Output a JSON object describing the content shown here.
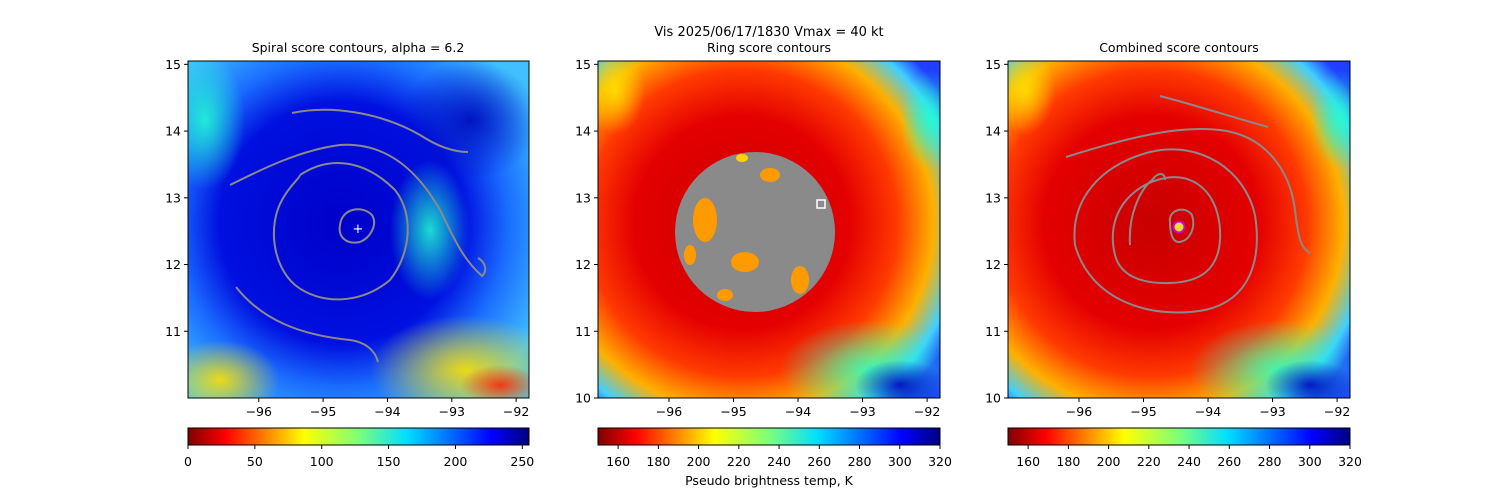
{
  "figure": {
    "suptitle_line1": "Vis  2025/06/17/1830    Vmax = 40 kt",
    "colorbar_label": "Pseudo brightness temp, K"
  },
  "chart_data": [
    {
      "type": "heatmap",
      "title": "Spiral score contours, alpha =  6.2",
      "xlabel": "",
      "ylabel": "",
      "xlim": [
        -97.1,
        -91.8
      ],
      "ylim": [
        10.0,
        15.05
      ],
      "xticks": [
        -96,
        -95,
        -94,
        -93,
        -92
      ],
      "yticks": [
        11,
        12,
        13,
        14,
        15
      ],
      "center_marker": {
        "lon": -94.3,
        "lat": 12.5,
        "symbol": "+",
        "color": "#ffffff"
      },
      "colorbar": {
        "colormap": "jet_r",
        "range": [
          0,
          255
        ],
        "ticks": [
          0,
          50,
          100,
          150,
          200,
          250
        ],
        "label": ""
      },
      "contour_color": "#8a8a8a"
    },
    {
      "type": "heatmap",
      "title": "Ring score contours",
      "xlabel": "",
      "ylabel": "",
      "xlim": [
        -97.1,
        -91.8
      ],
      "ylim": [
        10.0,
        15.05
      ],
      "xticks": [
        -96,
        -95,
        -94,
        -93,
        -92
      ],
      "yticks": [
        10,
        11,
        12,
        13,
        14,
        15
      ],
      "ring_marker": {
        "lon": -93.45,
        "lat": 12.9,
        "symbol": "square",
        "color": "#ffffff"
      },
      "colorbar": {
        "colormap": "jet_r",
        "range": [
          150,
          320
        ],
        "ticks": [
          160,
          180,
          200,
          220,
          240,
          260,
          280,
          300,
          320
        ],
        "label": "Pseudo brightness temp, K"
      },
      "contour_color": "#8a8a8a"
    },
    {
      "type": "heatmap",
      "title": "Combined score contours",
      "xlabel": "",
      "ylabel": "",
      "xlim": [
        -97.1,
        -91.8
      ],
      "ylim": [
        10.0,
        15.05
      ],
      "xticks": [
        -96,
        -95,
        -94,
        -93,
        -92
      ],
      "yticks": [
        10,
        11,
        12,
        13,
        14,
        15
      ],
      "center_marker": {
        "lon": -94.35,
        "lat": 12.55,
        "symbol": "circle",
        "color": "#e0e030",
        "edge": "#d000d0"
      },
      "colorbar": {
        "colormap": "jet_r",
        "range": [
          150,
          320
        ],
        "ticks": [
          160,
          180,
          200,
          220,
          240,
          260,
          280,
          300,
          320
        ],
        "label": ""
      },
      "contour_color": "#8a8a8a"
    }
  ]
}
